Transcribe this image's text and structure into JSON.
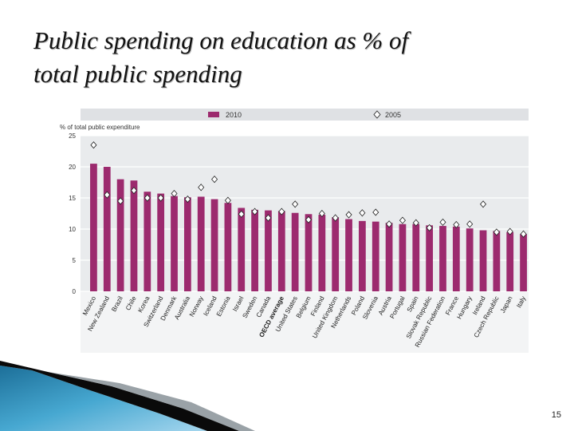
{
  "slide": {
    "title_line1": "Public spending on education as % of",
    "title_line2": "total public spending",
    "page_number": "15"
  },
  "chart_data": {
    "type": "bar",
    "ylabel": "% of total public expenditure",
    "ylim": [
      0,
      25
    ],
    "yticks": [
      "0",
      "5",
      "10",
      "15",
      "20",
      "25"
    ],
    "grid": true,
    "legend_position": "top",
    "categories": [
      "Mexico",
      "New Zealand",
      "Brazil",
      "Chile",
      "Korea",
      "Switzerland",
      "Denmark",
      "Australia",
      "Norway",
      "Iceland",
      "Estonia",
      "Israel",
      "Sweden",
      "Canada",
      "OECD average",
      "United States",
      "Belgium",
      "Finland",
      "United Kingdom",
      "Netherlands",
      "Poland",
      "Slovenia",
      "Austria",
      "Portugal",
      "Spain",
      "Slovak Republic",
      "Russian Federation",
      "France",
      "Hungary",
      "Ireland",
      "Czech Republic",
      "Japan",
      "Italy"
    ],
    "highlight_category": "OECD average",
    "series": [
      {
        "name": "2010",
        "kind": "bar",
        "color": "#9c2a6e",
        "values": [
          20.5,
          20.0,
          18.0,
          17.8,
          16.0,
          15.7,
          15.3,
          15.1,
          15.2,
          14.8,
          14.2,
          13.4,
          13.1,
          13.0,
          12.9,
          12.6,
          12.4,
          12.3,
          11.9,
          11.6,
          11.3,
          11.2,
          11.0,
          10.8,
          10.8,
          10.6,
          10.5,
          10.4,
          10.1,
          9.8,
          9.7,
          9.5,
          9.2
        ]
      },
      {
        "name": "2005",
        "kind": "marker",
        "color": "#ffffff",
        "values": [
          23.5,
          15.5,
          14.5,
          16.2,
          15.0,
          15.0,
          15.7,
          14.8,
          16.7,
          18.0,
          14.6,
          12.4,
          12.8,
          11.8,
          12.8,
          14.0,
          11.5,
          12.5,
          11.8,
          12.3,
          12.6,
          12.7,
          10.8,
          11.4,
          11.0,
          10.2,
          11.1,
          10.7,
          10.8,
          14.0,
          9.5,
          9.6,
          9.2
        ]
      }
    ]
  },
  "colors": {
    "bar": "#9c2a6e",
    "plot_background": "#e9ebed",
    "legend_background": "#dfe1e4",
    "gridline": "#ffffff",
    "deco_dark": "#0a0a0a",
    "deco_blue": "#3fa0c8",
    "deco_light_blue": "#9dd2ea"
  }
}
